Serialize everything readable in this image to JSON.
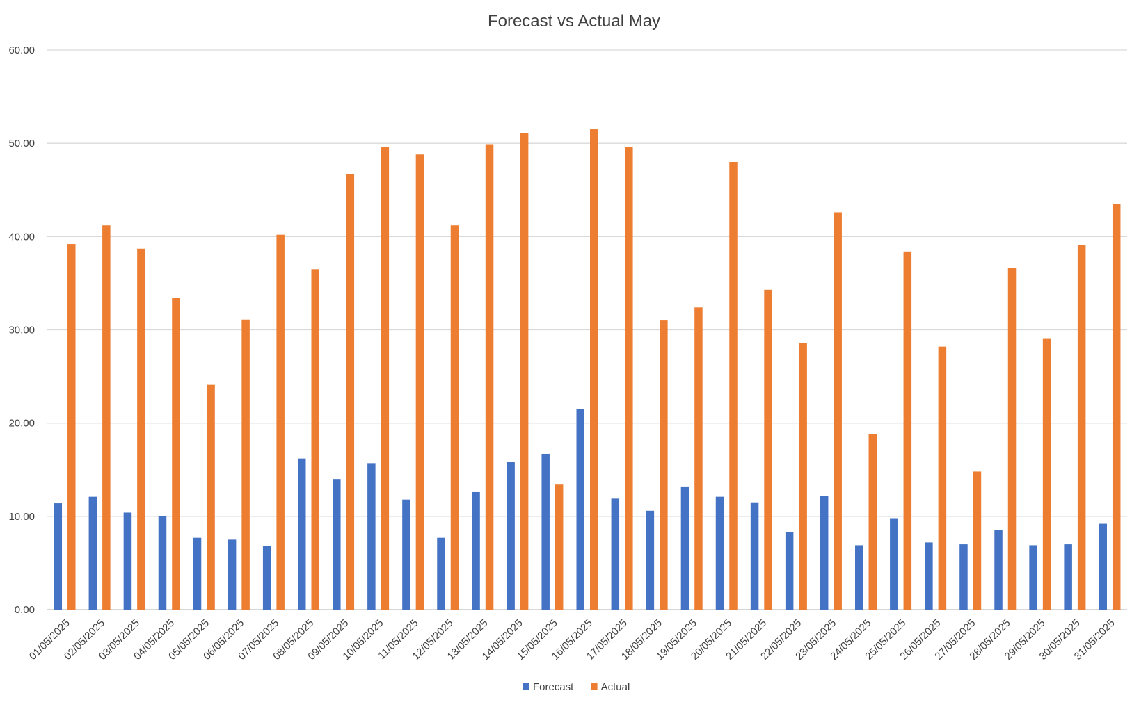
{
  "chart_data": {
    "type": "bar",
    "title": "Forecast vs Actual May",
    "xlabel": "",
    "ylabel": "",
    "ylim": [
      0,
      60
    ],
    "yticks": [
      "0.00",
      "10.00",
      "20.00",
      "30.00",
      "40.00",
      "50.00",
      "60.00"
    ],
    "grid": true,
    "legend_position": "bottom",
    "categories": [
      "01/05/2025",
      "02/05/2025",
      "03/05/2025",
      "04/05/2025",
      "05/05/2025",
      "06/05/2025",
      "07/05/2025",
      "08/05/2025",
      "09/05/2025",
      "10/05/2025",
      "11/05/2025",
      "12/05/2025",
      "13/05/2025",
      "14/05/2025",
      "15/05/2025",
      "16/05/2025",
      "17/05/2025",
      "18/05/2025",
      "19/05/2025",
      "20/05/2025",
      "21/05/2025",
      "22/05/2025",
      "23/05/2025",
      "24/05/2025",
      "25/05/2025",
      "26/05/2025",
      "27/05/2025",
      "28/05/2025",
      "29/05/2025",
      "30/05/2025",
      "31/05/2025"
    ],
    "series": [
      {
        "name": "Forecast",
        "color": "#4472c4",
        "values": [
          11.4,
          12.1,
          10.4,
          10.0,
          7.7,
          7.5,
          6.8,
          16.2,
          14.0,
          15.7,
          11.8,
          7.7,
          12.6,
          15.8,
          16.7,
          21.5,
          11.9,
          10.6,
          13.2,
          12.1,
          11.5,
          8.3,
          12.2,
          6.9,
          9.8,
          7.2,
          7.0,
          8.5,
          6.9,
          7.0,
          9.2
        ]
      },
      {
        "name": "Actual",
        "color": "#ed7d31",
        "values": [
          39.2,
          41.2,
          38.7,
          33.4,
          24.1,
          31.1,
          40.2,
          36.5,
          46.7,
          49.6,
          48.8,
          41.2,
          49.9,
          51.1,
          13.4,
          51.5,
          49.6,
          31.0,
          32.4,
          48.0,
          34.3,
          28.6,
          42.6,
          18.8,
          38.4,
          28.2,
          14.8,
          36.6,
          29.1,
          39.1,
          43.5
        ]
      }
    ]
  }
}
